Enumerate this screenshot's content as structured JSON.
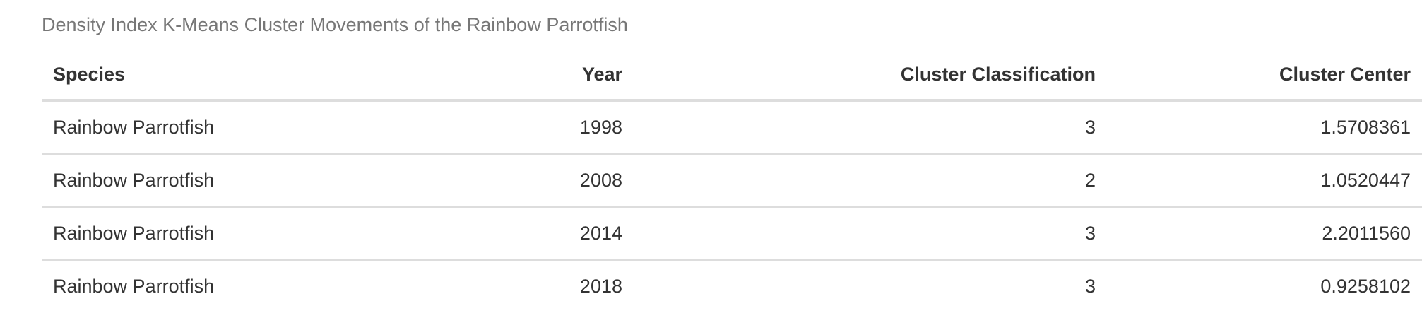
{
  "caption": "Density Index K-Means Cluster Movements of the Rainbow Parrotfish",
  "columns": {
    "species": "Species",
    "year": "Year",
    "classification": "Cluster Classification",
    "center": "Cluster Center"
  },
  "rows": [
    {
      "species": "Rainbow Parrotfish",
      "year": "1998",
      "classification": "3",
      "center": "1.5708361"
    },
    {
      "species": "Rainbow Parrotfish",
      "year": "2008",
      "classification": "2",
      "center": "1.0520447"
    },
    {
      "species": "Rainbow Parrotfish",
      "year": "2014",
      "classification": "3",
      "center": "2.2011560"
    },
    {
      "species": "Rainbow Parrotfish",
      "year": "2018",
      "classification": "3",
      "center": "0.9258102"
    }
  ]
}
